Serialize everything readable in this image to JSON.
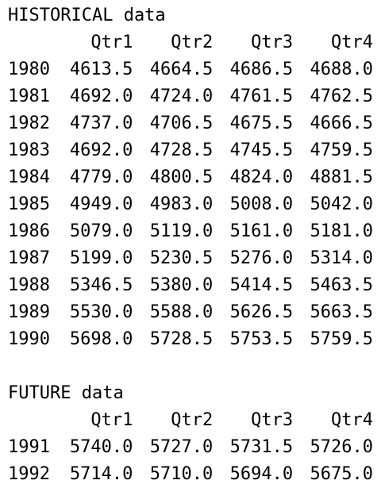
{
  "historical": {
    "title": "HISTORICAL data",
    "headers": [
      "Qtr1",
      "Qtr2",
      "Qtr3",
      "Qtr4"
    ],
    "rows": [
      {
        "year": "1980",
        "values": [
          "4613.5",
          "4664.5",
          "4686.5",
          "4688.0"
        ]
      },
      {
        "year": "1981",
        "values": [
          "4692.0",
          "4724.0",
          "4761.5",
          "4762.5"
        ]
      },
      {
        "year": "1982",
        "values": [
          "4737.0",
          "4706.5",
          "4675.5",
          "4666.5"
        ]
      },
      {
        "year": "1983",
        "values": [
          "4692.0",
          "4728.5",
          "4745.5",
          "4759.5"
        ]
      },
      {
        "year": "1984",
        "values": [
          "4779.0",
          "4800.5",
          "4824.0",
          "4881.5"
        ]
      },
      {
        "year": "1985",
        "values": [
          "4949.0",
          "4983.0",
          "5008.0",
          "5042.0"
        ]
      },
      {
        "year": "1986",
        "values": [
          "5079.0",
          "5119.0",
          "5161.0",
          "5181.0"
        ]
      },
      {
        "year": "1987",
        "values": [
          "5199.0",
          "5230.5",
          "5276.0",
          "5314.0"
        ]
      },
      {
        "year": "1988",
        "values": [
          "5346.5",
          "5380.0",
          "5414.5",
          "5463.5"
        ]
      },
      {
        "year": "1989",
        "values": [
          "5530.0",
          "5588.0",
          "5626.5",
          "5663.5"
        ]
      },
      {
        "year": "1990",
        "values": [
          "5698.0",
          "5728.5",
          "5753.5",
          "5759.5"
        ]
      }
    ]
  },
  "future": {
    "title": "FUTURE data",
    "headers": [
      "Qtr1",
      "Qtr2",
      "Qtr3",
      "Qtr4"
    ],
    "rows": [
      {
        "year": "1991",
        "values": [
          "5740.0",
          "5727.0",
          "5731.5",
          "5726.0"
        ]
      },
      {
        "year": "1992",
        "values": [
          "5714.0",
          "5710.0",
          "5694.0",
          "5675.0"
        ]
      }
    ]
  }
}
